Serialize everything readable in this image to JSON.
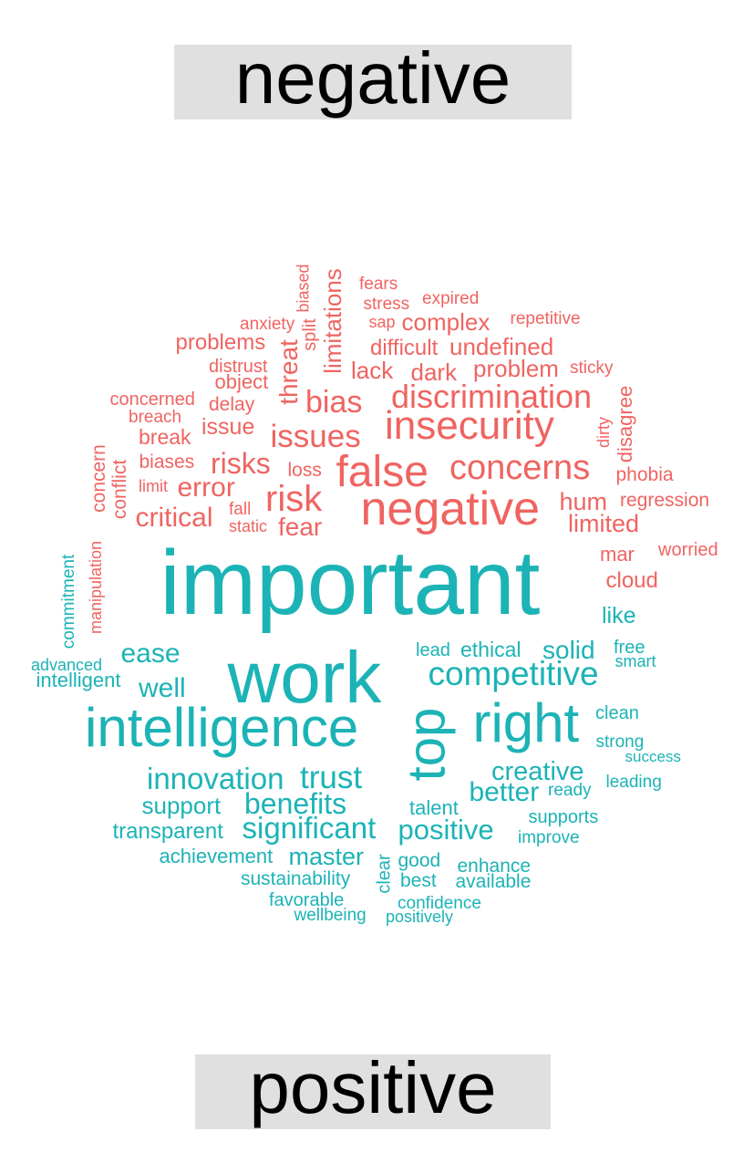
{
  "title_negative": "negative",
  "title_positive": "positive",
  "colors": {
    "negative": "#ef6461",
    "positive": "#1cb3b6",
    "title_box": "#e0e0e0"
  },
  "negative_words": [
    "fears",
    "biased",
    "expired",
    "stress",
    "limitations",
    "sap",
    "complex",
    "repetitive",
    "anxiety",
    "split",
    "threat",
    "problems",
    "difficult",
    "undefined",
    "distrust",
    "lack",
    "dark",
    "problem",
    "sticky",
    "object",
    "discrimination",
    "concerned",
    "delay",
    "bias",
    "disagree",
    "breach",
    "dirty",
    "issue",
    "insecurity",
    "issues",
    "break",
    "concern",
    "conflict",
    "risks",
    "concerns",
    "biases",
    "loss",
    "false",
    "phobia",
    "limit",
    "error",
    "manipulation",
    "risk",
    "hum",
    "regression",
    "fall",
    "negative",
    "critical",
    "static",
    "limited",
    "fear",
    "mar",
    "worried",
    "cloud"
  ],
  "positive_words": [
    "important",
    "commitment",
    "like",
    "free",
    "advanced",
    "ease",
    "lead",
    "ethical",
    "solid",
    "smart",
    "intelligent",
    "competitive",
    "work",
    "well",
    "right",
    "clean",
    "intelligence",
    "top",
    "strong",
    "success",
    "creative",
    "innovation",
    "trust",
    "leading",
    "ready",
    "better",
    "support",
    "benefits",
    "talent",
    "supports",
    "significant",
    "positive",
    "transparent",
    "improve",
    "achievement",
    "master",
    "good",
    "clear",
    "enhance",
    "sustainability",
    "best",
    "available",
    "favorable",
    "confidence",
    "wellbeing",
    "positively"
  ]
}
